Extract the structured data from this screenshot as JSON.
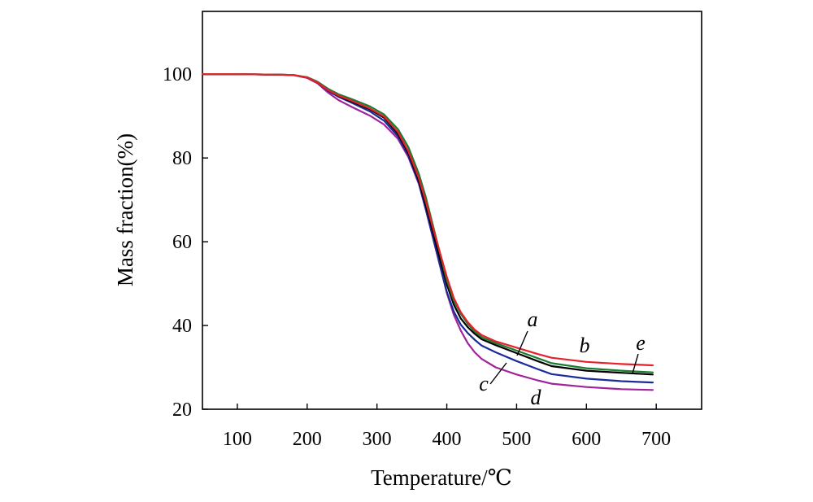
{
  "chart_data": {
    "type": "line",
    "title": "",
    "xlabel": "Temperature/℃",
    "ylabel": "Mass fraction(%)",
    "xlim": [
      50,
      765
    ],
    "ylim": [
      20,
      115
    ],
    "xticks": [
      100,
      200,
      300,
      400,
      500,
      600,
      700
    ],
    "yticks": [
      20,
      40,
      60,
      80,
      100
    ],
    "grid": false,
    "legend": "none",
    "series": [
      {
        "name": "a",
        "color": "#000000",
        "x": [
          50,
          100,
          150,
          180,
          200,
          215,
          230,
          245,
          265,
          290,
          310,
          330,
          345,
          360,
          370,
          380,
          390,
          400,
          410,
          420,
          430,
          440,
          450,
          470,
          500,
          530,
          550,
          600,
          650,
          695
        ],
        "y": [
          100.0,
          100.0,
          99.9,
          99.8,
          99.2,
          98.0,
          96.2,
          94.8,
          93.4,
          91.6,
          89.6,
          85.8,
          81.2,
          74.6,
          68.6,
          62.4,
          56.0,
          49.8,
          45.0,
          41.7,
          39.6,
          38.0,
          36.7,
          35.3,
          33.4,
          31.5,
          30.3,
          29.2,
          28.7,
          28.3
        ],
        "label_x": 505,
        "label_y": 33.6
      },
      {
        "name": "b",
        "color": "#e8202a",
        "x": [
          50,
          100,
          150,
          180,
          200,
          215,
          230,
          245,
          265,
          290,
          310,
          330,
          345,
          360,
          370,
          380,
          390,
          400,
          410,
          420,
          430,
          440,
          450,
          470,
          500,
          530,
          550,
          600,
          650,
          695
        ],
        "y": [
          100.0,
          100.0,
          99.9,
          99.8,
          99.2,
          98.0,
          96.2,
          94.9,
          93.6,
          91.8,
          89.9,
          86.2,
          81.6,
          75.2,
          69.6,
          63.4,
          57.5,
          51.6,
          46.6,
          43.2,
          40.8,
          39.0,
          37.7,
          36.2,
          34.7,
          33.2,
          32.3,
          31.3,
          30.8,
          30.5
        ],
        "label_x": 603,
        "label_y": 31.1
      },
      {
        "name": "c",
        "color": "#1a2b9a",
        "x": [
          50,
          100,
          150,
          180,
          200,
          215,
          230,
          245,
          265,
          290,
          310,
          330,
          345,
          360,
          370,
          380,
          390,
          400,
          410,
          420,
          430,
          440,
          450,
          470,
          500,
          530,
          550,
          600,
          650,
          695
        ],
        "y": [
          100.0,
          100.0,
          99.9,
          99.8,
          99.2,
          98.0,
          96.0,
          94.6,
          93.1,
          91.1,
          88.9,
          85.2,
          80.6,
          74.0,
          67.8,
          61.2,
          54.6,
          48.0,
          43.4,
          40.2,
          38.2,
          36.6,
          35.2,
          33.6,
          31.5,
          29.6,
          28.4,
          27.3,
          26.7,
          26.4
        ],
        "label_x": 495,
        "label_y": 31.6
      },
      {
        "name": "d",
        "color": "#a0239a",
        "x": [
          50,
          100,
          150,
          180,
          200,
          215,
          230,
          245,
          265,
          290,
          310,
          330,
          345,
          360,
          370,
          380,
          390,
          400,
          410,
          420,
          430,
          440,
          450,
          470,
          500,
          530,
          550,
          600,
          650,
          695
        ],
        "y": [
          100.0,
          100.0,
          99.9,
          99.8,
          99.1,
          97.8,
          95.6,
          93.8,
          92.1,
          90.1,
          88.0,
          84.6,
          80.2,
          73.8,
          67.6,
          61.0,
          54.4,
          47.8,
          42.6,
          38.8,
          35.8,
          33.6,
          32.0,
          30.0,
          28.3,
          26.9,
          26.1,
          25.3,
          24.8,
          24.6
        ],
        "label_x": 0,
        "label_y": 0
      },
      {
        "name": "e",
        "color": "#1d7a2e",
        "x": [
          50,
          100,
          150,
          180,
          200,
          215,
          230,
          245,
          265,
          290,
          310,
          330,
          345,
          360,
          370,
          380,
          390,
          400,
          410,
          420,
          430,
          440,
          450,
          470,
          500,
          530,
          550,
          600,
          650,
          695
        ],
        "y": [
          100.0,
          100.0,
          99.9,
          99.8,
          99.3,
          98.2,
          96.5,
          95.2,
          94.0,
          92.3,
          90.4,
          86.9,
          82.6,
          76.2,
          70.6,
          64.0,
          57.4,
          50.8,
          46.0,
          42.8,
          40.4,
          38.6,
          37.2,
          35.8,
          34.0,
          32.2,
          31.0,
          29.8,
          29.2,
          28.8
        ],
        "label_x": 673,
        "label_y": 29.2
      }
    ],
    "curve_labels": {
      "a": "a",
      "b": "b",
      "c": "c",
      "d": "d",
      "e": "e"
    }
  }
}
